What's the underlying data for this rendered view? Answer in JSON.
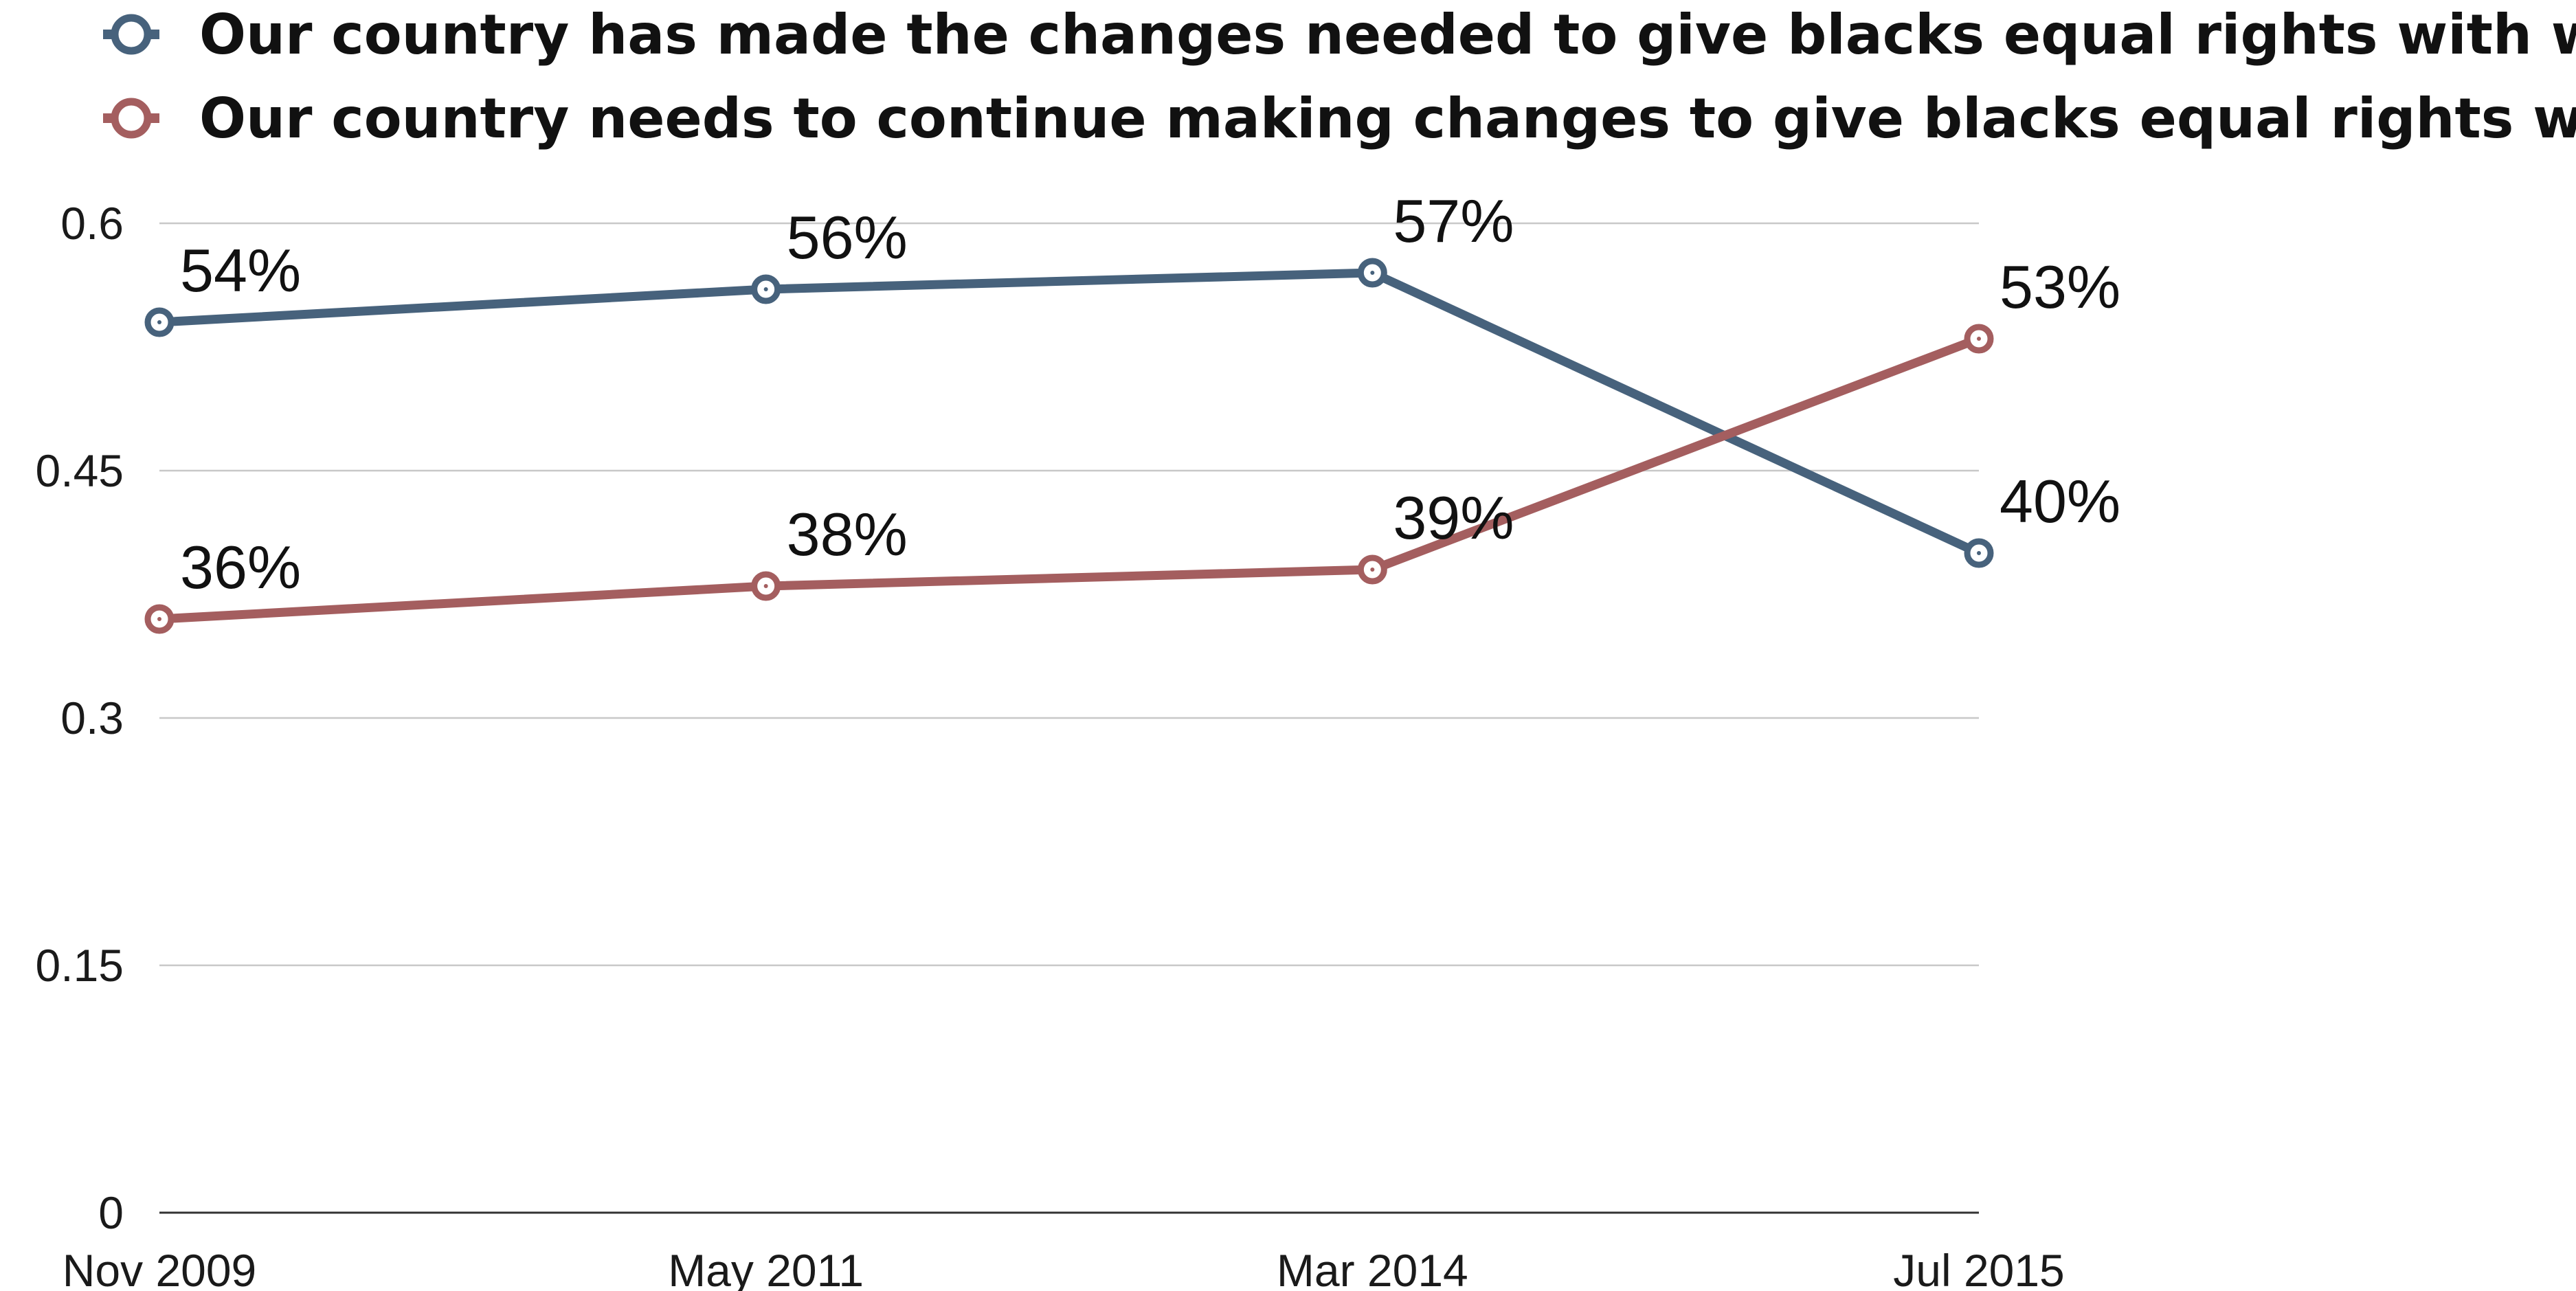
{
  "chart_data": {
    "type": "line",
    "x": [
      "Nov 2009",
      "May 2011",
      "Mar 2014",
      "Jul 2015"
    ],
    "series": [
      {
        "name": "Our country has made the changes needed to give blacks equal rights with whites",
        "values": [
          0.54,
          0.56,
          0.57,
          0.4
        ],
        "labels": [
          "54%",
          "56%",
          "57%",
          "40%"
        ],
        "color": "#47627c"
      },
      {
        "name": "Our country needs to continue making changes to give blacks equal rights with whites",
        "values": [
          0.36,
          0.38,
          0.39,
          0.53
        ],
        "labels": [
          "36%",
          "38%",
          "39%",
          "53%"
        ],
        "color": "#a45e5f"
      }
    ],
    "y_ticks": [
      {
        "value": 0,
        "label": "0"
      },
      {
        "value": 0.15,
        "label": "0.15"
      },
      {
        "value": 0.3,
        "label": "0.3"
      },
      {
        "value": 0.45,
        "label": "0.45"
      },
      {
        "value": 0.6,
        "label": "0.6"
      }
    ],
    "ylim": [
      0,
      0.6
    ],
    "grid": true,
    "legend_position": "top",
    "title": "",
    "xlabel": "",
    "ylabel": ""
  }
}
